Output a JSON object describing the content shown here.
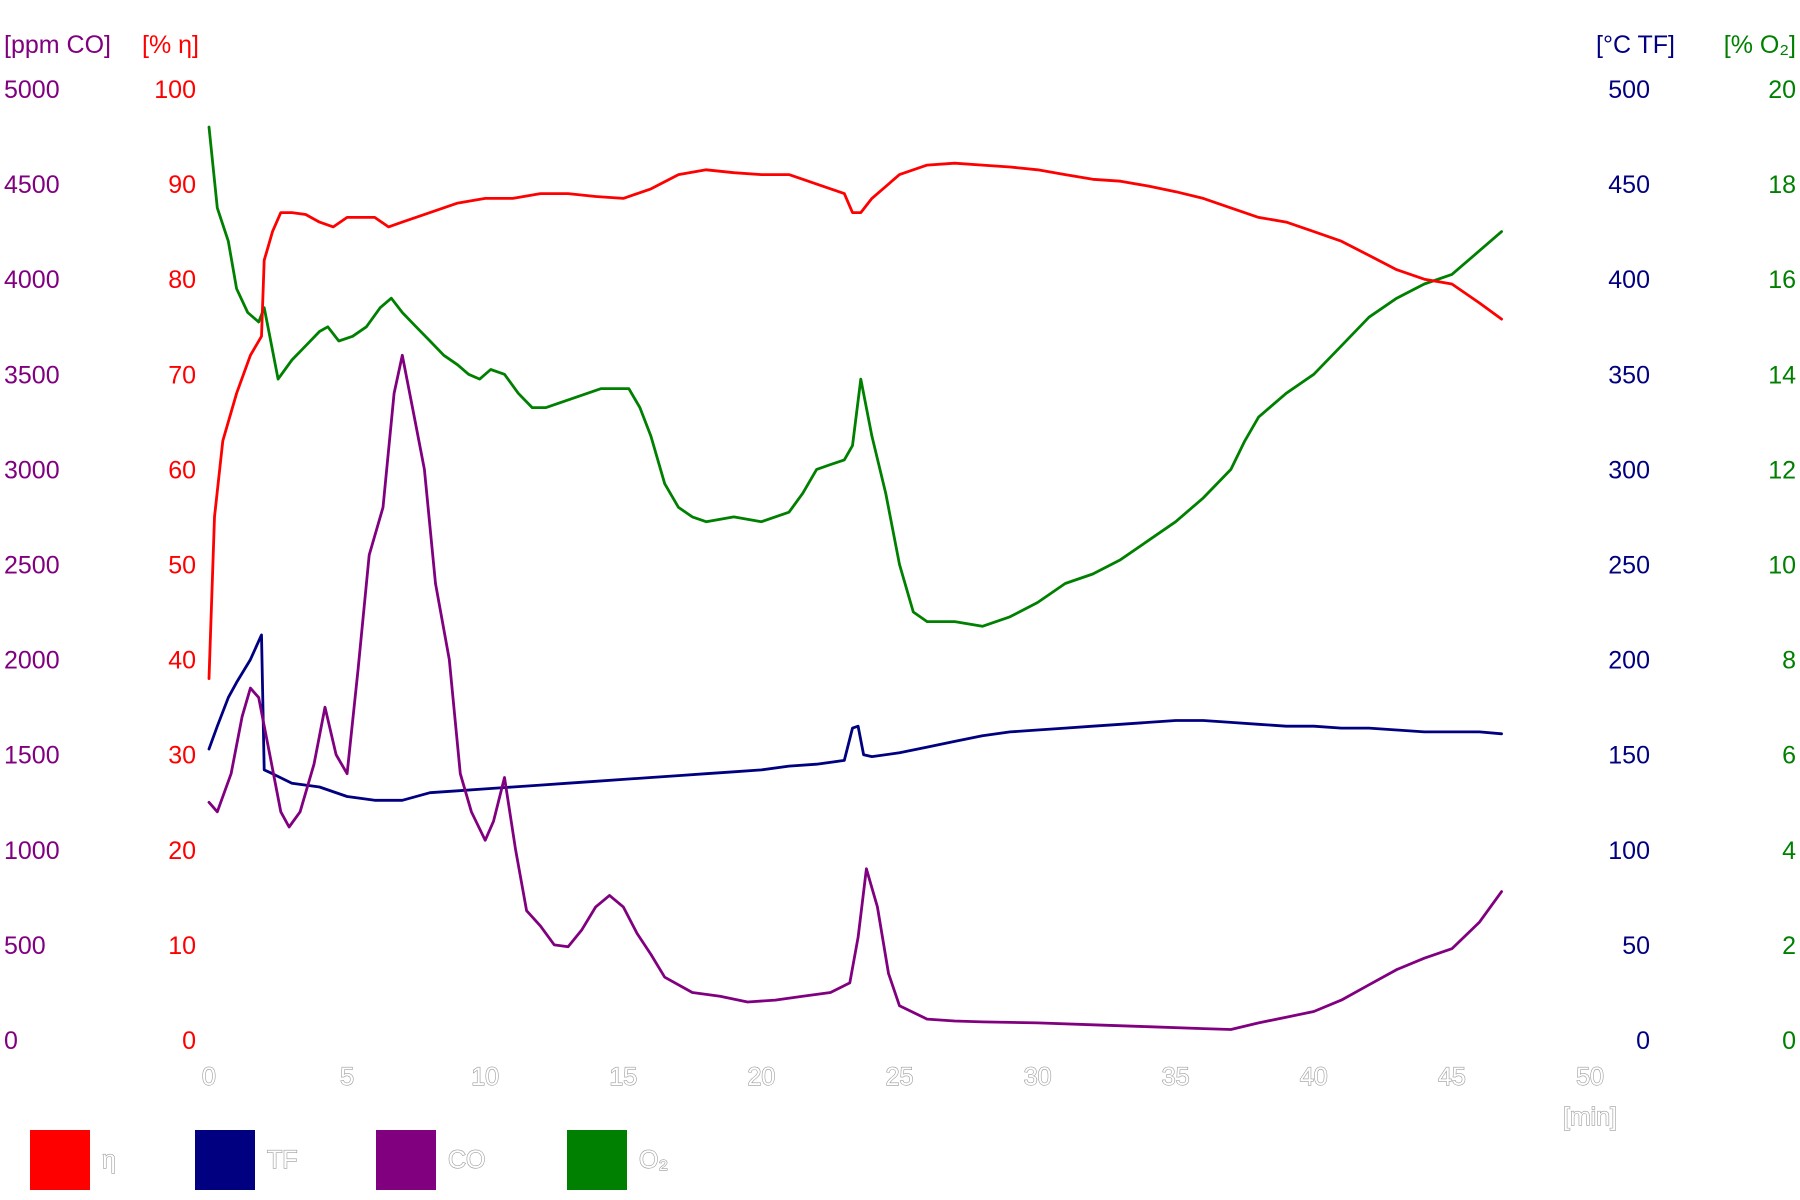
{
  "chart_data": {
    "type": "line",
    "x_unit_label": "[min]",
    "xlim": [
      0,
      50
    ],
    "x_ticks": [
      "0",
      "5",
      "10",
      "15",
      "20",
      "25",
      "30",
      "35",
      "40",
      "45",
      "50"
    ],
    "grid": false,
    "legend_position": "bottom-left",
    "axes": [
      {
        "id": "co",
        "side": "left",
        "unit_label": "[ppm CO]",
        "range": [
          0,
          5000
        ],
        "ticks": [
          "0",
          "500",
          "1000",
          "1500",
          "2000",
          "2500",
          "3000",
          "3500",
          "4000",
          "4500",
          "5000"
        ],
        "color": "#800080"
      },
      {
        "id": "eta",
        "side": "left",
        "unit_label": "[% η]",
        "range": [
          0,
          100
        ],
        "ticks": [
          "0",
          "10",
          "20",
          "30",
          "40",
          "50",
          "60",
          "70",
          "80",
          "90",
          "100"
        ],
        "color": "#ff0000"
      },
      {
        "id": "tf",
        "side": "right",
        "unit_label": "[°C TF]",
        "range": [
          0,
          500
        ],
        "ticks": [
          "0",
          "50",
          "100",
          "150",
          "200",
          "250",
          "300",
          "350",
          "400",
          "450",
          "500"
        ],
        "color": "#000080"
      },
      {
        "id": "o2",
        "side": "right",
        "unit_label": "[% O₂]",
        "range": [
          0,
          20
        ],
        "ticks": [
          "0",
          "2",
          "4",
          "6",
          "8",
          "10",
          "12",
          "14",
          "16",
          "18",
          "20"
        ],
        "color": "#008000"
      }
    ],
    "series": [
      {
        "name": "η",
        "axis": "eta",
        "color": "#ff0000",
        "points": [
          [
            0,
            38
          ],
          [
            0.2,
            55
          ],
          [
            0.5,
            63
          ],
          [
            1,
            68
          ],
          [
            1.5,
            72
          ],
          [
            1.9,
            74
          ],
          [
            2.0,
            82
          ],
          [
            2.1,
            83
          ],
          [
            2.3,
            85
          ],
          [
            2.6,
            87
          ],
          [
            3,
            87
          ],
          [
            3.5,
            86.8
          ],
          [
            4,
            86
          ],
          [
            4.5,
            85.5
          ],
          [
            5,
            86.5
          ],
          [
            6,
            86.5
          ],
          [
            6.5,
            85.5
          ],
          [
            7,
            86
          ],
          [
            8,
            87
          ],
          [
            9,
            88
          ],
          [
            10,
            88.5
          ],
          [
            11,
            88.5
          ],
          [
            12,
            89
          ],
          [
            13,
            89
          ],
          [
            14,
            88.7
          ],
          [
            15,
            88.5
          ],
          [
            16,
            89.5
          ],
          [
            17,
            91
          ],
          [
            18,
            91.5
          ],
          [
            19,
            91.2
          ],
          [
            20,
            91
          ],
          [
            21,
            91
          ],
          [
            22,
            90
          ],
          [
            23,
            89
          ],
          [
            23.3,
            87
          ],
          [
            23.6,
            87
          ],
          [
            24,
            88.5
          ],
          [
            25,
            91
          ],
          [
            26,
            92
          ],
          [
            27,
            92.2
          ],
          [
            28,
            92
          ],
          [
            29,
            91.8
          ],
          [
            30,
            91.5
          ],
          [
            31,
            91
          ],
          [
            32,
            90.5
          ],
          [
            33,
            90.3
          ],
          [
            34,
            89.8
          ],
          [
            35,
            89.2
          ],
          [
            36,
            88.5
          ],
          [
            37,
            87.5
          ],
          [
            38,
            86.5
          ],
          [
            39,
            86
          ],
          [
            40,
            85
          ],
          [
            41,
            84
          ],
          [
            42,
            82.5
          ],
          [
            43,
            81
          ],
          [
            44,
            80
          ],
          [
            45,
            79.5
          ],
          [
            46,
            77.5
          ],
          [
            46.8,
            75.8
          ]
        ]
      },
      {
        "name": "TF",
        "axis": "tf",
        "color": "#000080",
        "points": [
          [
            0,
            153
          ],
          [
            0.3,
            165
          ],
          [
            0.7,
            180
          ],
          [
            1,
            188
          ],
          [
            1.5,
            200
          ],
          [
            1.9,
            213
          ],
          [
            2.0,
            142
          ],
          [
            2.3,
            140
          ],
          [
            3,
            135
          ],
          [
            4,
            133
          ],
          [
            5,
            128
          ],
          [
            6,
            126
          ],
          [
            7,
            126
          ],
          [
            8,
            130
          ],
          [
            9,
            131
          ],
          [
            10,
            132
          ],
          [
            11,
            133
          ],
          [
            12,
            134
          ],
          [
            13,
            135
          ],
          [
            14,
            136
          ],
          [
            15,
            137
          ],
          [
            16,
            138
          ],
          [
            17,
            139
          ],
          [
            18,
            140
          ],
          [
            19,
            141
          ],
          [
            20,
            142
          ],
          [
            21,
            144
          ],
          [
            22,
            145
          ],
          [
            23,
            147
          ],
          [
            23.3,
            164
          ],
          [
            23.5,
            165
          ],
          [
            23.7,
            150
          ],
          [
            24,
            149
          ],
          [
            25,
            151
          ],
          [
            26,
            154
          ],
          [
            27,
            157
          ],
          [
            28,
            160
          ],
          [
            29,
            162
          ],
          [
            30,
            163
          ],
          [
            31,
            164
          ],
          [
            32,
            165
          ],
          [
            33,
            166
          ],
          [
            34,
            167
          ],
          [
            35,
            168
          ],
          [
            36,
            168
          ],
          [
            37,
            167
          ],
          [
            38,
            166
          ],
          [
            39,
            165
          ],
          [
            40,
            165
          ],
          [
            41,
            164
          ],
          [
            42,
            164
          ],
          [
            43,
            163
          ],
          [
            44,
            162
          ],
          [
            45,
            162
          ],
          [
            46,
            162
          ],
          [
            46.8,
            161
          ]
        ]
      },
      {
        "name": "CO",
        "axis": "co",
        "color": "#800080",
        "points": [
          [
            0,
            1250
          ],
          [
            0.3,
            1200
          ],
          [
            0.8,
            1400
          ],
          [
            1.2,
            1700
          ],
          [
            1.5,
            1850
          ],
          [
            1.8,
            1800
          ],
          [
            2.2,
            1500
          ],
          [
            2.6,
            1200
          ],
          [
            2.9,
            1120
          ],
          [
            3.3,
            1200
          ],
          [
            3.8,
            1450
          ],
          [
            4.2,
            1750
          ],
          [
            4.6,
            1500
          ],
          [
            5,
            1400
          ],
          [
            5.4,
            1950
          ],
          [
            5.8,
            2550
          ],
          [
            6.3,
            2800
          ],
          [
            6.7,
            3400
          ],
          [
            7,
            3600
          ],
          [
            7.4,
            3300
          ],
          [
            7.8,
            3000
          ],
          [
            8.2,
            2400
          ],
          [
            8.7,
            2000
          ],
          [
            9.1,
            1400
          ],
          [
            9.5,
            1200
          ],
          [
            10,
            1050
          ],
          [
            10.3,
            1150
          ],
          [
            10.7,
            1380
          ],
          [
            11.1,
            1000
          ],
          [
            11.5,
            680
          ],
          [
            12,
            600
          ],
          [
            12.5,
            500
          ],
          [
            13,
            490
          ],
          [
            13.5,
            580
          ],
          [
            14,
            700
          ],
          [
            14.5,
            760
          ],
          [
            15,
            700
          ],
          [
            15.5,
            560
          ],
          [
            16,
            450
          ],
          [
            16.5,
            330
          ],
          [
            17.5,
            250
          ],
          [
            18.5,
            230
          ],
          [
            19.5,
            200
          ],
          [
            20.5,
            210
          ],
          [
            21.5,
            230
          ],
          [
            22.5,
            250
          ],
          [
            23.2,
            300
          ],
          [
            23.5,
            540
          ],
          [
            23.8,
            900
          ],
          [
            24.2,
            700
          ],
          [
            24.6,
            350
          ],
          [
            25,
            180
          ],
          [
            26,
            110
          ],
          [
            27,
            100
          ],
          [
            28,
            95
          ],
          [
            30,
            90
          ],
          [
            32,
            80
          ],
          [
            34,
            70
          ],
          [
            36,
            60
          ],
          [
            37,
            55
          ],
          [
            38,
            90
          ],
          [
            39,
            120
          ],
          [
            40,
            150
          ],
          [
            41,
            210
          ],
          [
            42,
            290
          ],
          [
            43,
            370
          ],
          [
            44,
            430
          ],
          [
            45,
            480
          ],
          [
            46,
            620
          ],
          [
            46.8,
            780
          ]
        ]
      },
      {
        "name": "O₂",
        "axis": "o2",
        "color": "#008000",
        "points": [
          [
            0,
            19.2
          ],
          [
            0.3,
            17.5
          ],
          [
            0.7,
            16.8
          ],
          [
            1,
            15.8
          ],
          [
            1.4,
            15.3
          ],
          [
            1.8,
            15.1
          ],
          [
            2.0,
            15.4
          ],
          [
            2.2,
            14.8
          ],
          [
            2.5,
            13.9
          ],
          [
            3,
            14.3
          ],
          [
            3.5,
            14.6
          ],
          [
            4,
            14.9
          ],
          [
            4.3,
            15.0
          ],
          [
            4.7,
            14.7
          ],
          [
            5.2,
            14.8
          ],
          [
            5.7,
            15.0
          ],
          [
            6.2,
            15.4
          ],
          [
            6.6,
            15.6
          ],
          [
            7,
            15.3
          ],
          [
            7.5,
            15.0
          ],
          [
            8,
            14.7
          ],
          [
            8.5,
            14.4
          ],
          [
            9,
            14.2
          ],
          [
            9.4,
            14.0
          ],
          [
            9.8,
            13.9
          ],
          [
            10.2,
            14.1
          ],
          [
            10.7,
            14.0
          ],
          [
            11.2,
            13.6
          ],
          [
            11.7,
            13.3
          ],
          [
            12.2,
            13.3
          ],
          [
            12.7,
            13.4
          ],
          [
            13.2,
            13.5
          ],
          [
            13.7,
            13.6
          ],
          [
            14.2,
            13.7
          ],
          [
            14.7,
            13.7
          ],
          [
            15.2,
            13.7
          ],
          [
            15.6,
            13.3
          ],
          [
            16,
            12.7
          ],
          [
            16.5,
            11.7
          ],
          [
            17,
            11.2
          ],
          [
            17.5,
            11.0
          ],
          [
            18,
            10.9
          ],
          [
            19,
            11.0
          ],
          [
            20,
            10.9
          ],
          [
            20.5,
            11.0
          ],
          [
            21,
            11.1
          ],
          [
            21.5,
            11.5
          ],
          [
            22,
            12.0
          ],
          [
            22.5,
            12.1
          ],
          [
            23,
            12.2
          ],
          [
            23.3,
            12.5
          ],
          [
            23.6,
            13.9
          ],
          [
            24,
            12.7
          ],
          [
            24.5,
            11.5
          ],
          [
            25,
            10.0
          ],
          [
            25.5,
            9.0
          ],
          [
            26,
            8.8
          ],
          [
            27,
            8.8
          ],
          [
            28,
            8.7
          ],
          [
            29,
            8.9
          ],
          [
            30,
            9.2
          ],
          [
            31,
            9.6
          ],
          [
            32,
            9.8
          ],
          [
            33,
            10.1
          ],
          [
            34,
            10.5
          ],
          [
            35,
            10.9
          ],
          [
            36,
            11.4
          ],
          [
            37,
            12.0
          ],
          [
            37.5,
            12.6
          ],
          [
            38,
            13.1
          ],
          [
            39,
            13.6
          ],
          [
            40,
            14.0
          ],
          [
            41,
            14.6
          ],
          [
            42,
            15.2
          ],
          [
            43,
            15.6
          ],
          [
            44,
            15.9
          ],
          [
            45,
            16.1
          ],
          [
            46,
            16.6
          ],
          [
            46.8,
            17.0
          ]
        ]
      }
    ]
  }
}
